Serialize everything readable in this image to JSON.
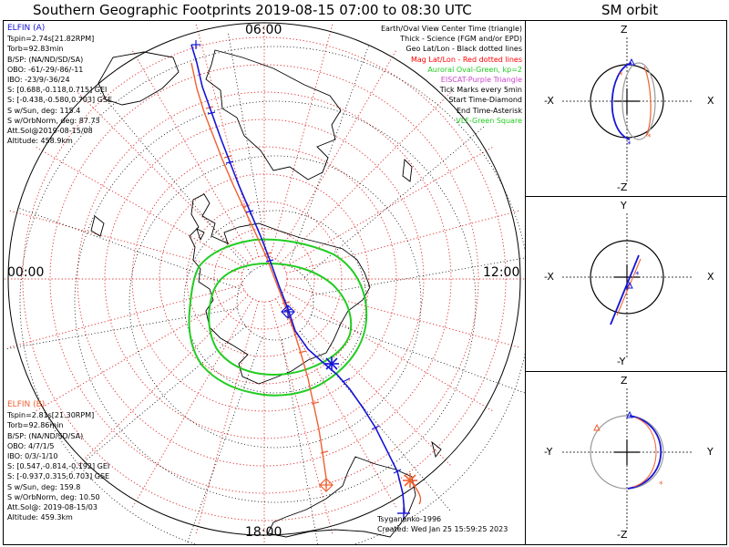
{
  "header": {
    "title": "Southern Geographic Footprints 2019-08-15 07:00 to 08:30 UTC",
    "orbit_title": "SM orbit"
  },
  "map": {
    "mlt_labels": {
      "top": "06:00",
      "left": "00:00",
      "right": "12:00",
      "bottom": "18:00"
    }
  },
  "elfin_a": {
    "name": "ELFIN (A)",
    "lines": [
      "Tspin=2.74s[21.82RPM]",
      "Torb=92.83min",
      "B/SP: (NA/ND/SD/SA)",
      "OBO: -61/-29/-86/-11",
      "IBO: -23/9/-36/24",
      "S: [0.688,-0.118,0.715] GEI",
      "S: [-0.438,-0.580,0.703] GSE",
      "S w/Sun, deg: 115.4",
      "S w/OrbNorm, deg: 87.73",
      "Att.Sol@2019-08-15/08",
      "Altitude: 458.9km"
    ]
  },
  "elfin_b": {
    "name": "ELFIN (B)",
    "lines": [
      "Tspin=2.81s[21.30RPM]",
      "Torb=92.86min",
      "B/SP: (NA/ND/SD/SA)",
      "OBO: 4/7/1/5",
      "IBO: 0/3/-1/10",
      "S: [0.547,-0.814,-0.192] GEI",
      "S: [-0.937,0.315,0.703] GSE",
      "S w/Sun, deg: 159.8",
      "S w/OrbNorm, deg: 10.50",
      "Att.Sol@: 2019-08-15/03",
      "Altitude: 459.3km"
    ]
  },
  "legend": [
    {
      "text": "Earth/Oval View Center Time (triangle)",
      "color": "#000000"
    },
    {
      "text": "Thick - Science (FGM and/or EPD)",
      "color": "#000000"
    },
    {
      "text": "Geo Lat/Lon - Black dotted lines",
      "color": "#000000"
    },
    {
      "text": "Mag Lat/Lon - Red dotted lines",
      "color": "#ff0000"
    },
    {
      "text": "Auroral Oval-Green, kp=2",
      "color": "#22cc22"
    },
    {
      "text": "EISCAT-Purple Triangle",
      "color": "#cc44cc"
    },
    {
      "text": "Tick Marks every 5min",
      "color": "#000000"
    },
    {
      "text": "Start Time-Diamond",
      "color": "#000000"
    },
    {
      "text": "End Time-Asterisk",
      "color": "#000000"
    },
    {
      "text": "VLF-Green Square",
      "color": "#22cc22"
    }
  ],
  "credit": {
    "line1": "Tsyganenko-1996",
    "line2": "Created: Wed Jan 25 15:59:25 2023"
  },
  "sm_panels": [
    {
      "top": "Z",
      "bottom": "-Z",
      "left": "-X",
      "right": "X"
    },
    {
      "top": "Y",
      "bottom": "-Y",
      "left": "-X",
      "right": "X"
    },
    {
      "top": "Z",
      "bottom": "-Z",
      "left": "-Y",
      "right": "Y"
    }
  ],
  "colors": {
    "elfin_a": "#1515d8",
    "elfin_b": "#f06030",
    "oval": "#22cc22",
    "mag_grid": "#e03030"
  }
}
